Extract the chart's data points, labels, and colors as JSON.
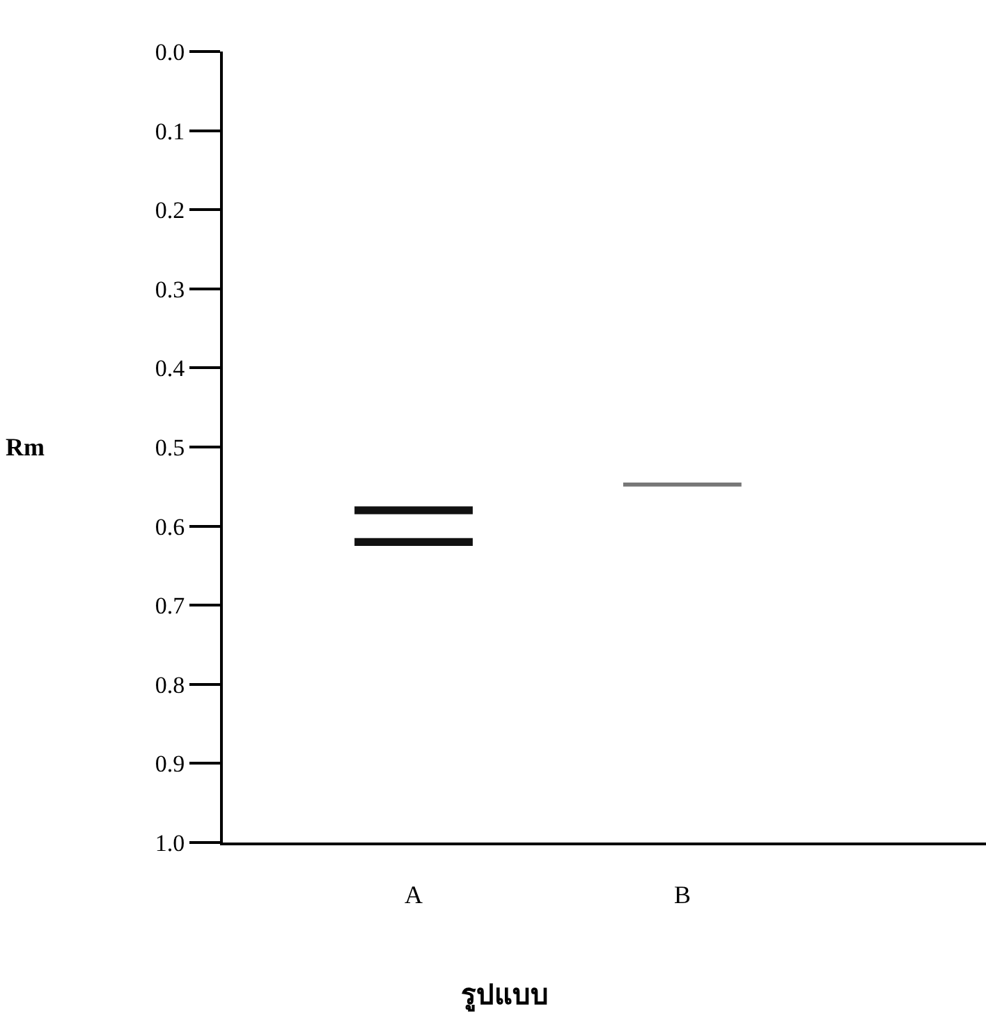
{
  "chart_data": {
    "type": "bar",
    "xlabel": "รูปแบบ",
    "ylabel": "Rm",
    "categories": [
      "A",
      "B"
    ],
    "series": [
      {
        "colors": [
          "#111111",
          "#777777"
        ],
        "base": [
          0.575,
          0.545
        ],
        "values": [
          0.01,
          0.005
        ]
      },
      {
        "color": "#111111",
        "base": [
          0.615,
          null
        ],
        "values": [
          0.01,
          null
        ]
      }
    ],
    "ylim": [
      1.0,
      0.0
    ],
    "yticks": [
      {
        "value": 0,
        "label": "0.0"
      },
      0.1,
      0.2,
      0.3,
      0.4,
      0.5,
      0.6,
      0.7,
      0.8,
      0.9,
      {
        "value": 1,
        "label": "1.0"
      }
    ]
  }
}
